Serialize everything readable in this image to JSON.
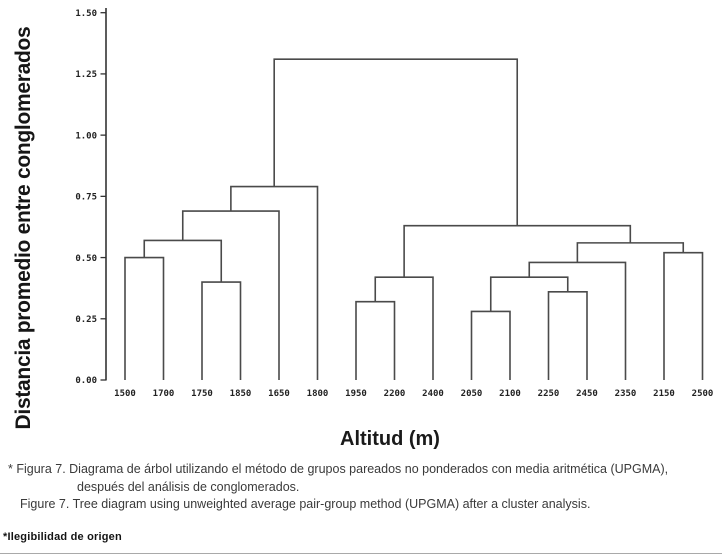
{
  "caption": {
    "line1": "* Figura 7. Diagrama de árbol utilizando el método de grupos pareados no ponderados con media aritmética (UPGMA),",
    "line2": "después del análisis de conglomerados.",
    "line3": "Figure 7. Tree diagram using unweighted average pair-group method (UPGMA) after a cluster analysis."
  },
  "footnote": "*Ilegibilidad de origen",
  "chart_data": {
    "type": "dendrogram",
    "title": "",
    "xlabel": "Altitud (m)",
    "ylabel": "Distancia promedio entre conglomerados",
    "ylim": [
      0,
      1.5
    ],
    "y_tick_labels": [
      "1.50",
      "1.25",
      "1.00",
      "0.75",
      "0.50",
      "0.25",
      "0.00"
    ],
    "y_tick_values": [
      1.5,
      1.25,
      1.0,
      0.75,
      0.5,
      0.25,
      0.0
    ],
    "grid": false,
    "legend": false,
    "leaves": [
      "1500",
      "1700",
      "1750",
      "1850",
      "1650",
      "1800",
      "1950",
      "2200",
      "2400",
      "2050",
      "2100",
      "2250",
      "2450",
      "2350",
      "2150",
      "2500"
    ],
    "merges": [
      {
        "a": "L0",
        "b": "L1",
        "h": 0.5
      },
      {
        "a": "L2",
        "b": "L3",
        "h": 0.4
      },
      {
        "a": "M0",
        "b": "M1",
        "h": 0.57
      },
      {
        "a": "M2",
        "b": "L4",
        "h": 0.69
      },
      {
        "a": "M3",
        "b": "L5",
        "h": 0.79
      },
      {
        "a": "L6",
        "b": "L7",
        "h": 0.32
      },
      {
        "a": "M5",
        "b": "L8",
        "h": 0.42
      },
      {
        "a": "L9",
        "b": "L10",
        "h": 0.28
      },
      {
        "a": "L11",
        "b": "L12",
        "h": 0.36
      },
      {
        "a": "M7",
        "b": "M8",
        "h": 0.42
      },
      {
        "a": "M9",
        "b": "L13",
        "h": 0.48
      },
      {
        "a": "L14",
        "b": "L15",
        "h": 0.52
      },
      {
        "a": "M10",
        "b": "M11",
        "h": 0.56
      },
      {
        "a": "M6",
        "b": "M12",
        "h": 0.63
      },
      {
        "a": "M4",
        "b": "M13",
        "h": 1.31
      }
    ],
    "colors": {
      "link": "#4a4a4a",
      "axis": "#333333",
      "tick_label": "#222222"
    }
  }
}
